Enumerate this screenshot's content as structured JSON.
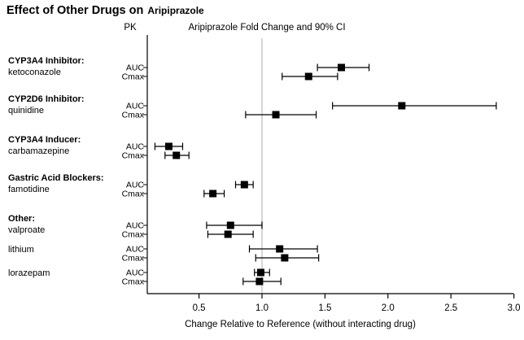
{
  "title": {
    "main": "Effect of Other Drugs on",
    "drug": "Aripiprazole"
  },
  "chart_data": {
    "type": "forest",
    "title": "Effect of Other Drugs on Aripiprazole",
    "column_headers": {
      "pk": "PK",
      "plot": "Aripiprazole Fold Change and 90% CI"
    },
    "xlabel": "Change Relative to Reference (without interacting drug)",
    "x_axis": {
      "min": 0.09,
      "max": 3.0,
      "ticks": [
        0.5,
        1.0,
        1.5,
        2.0,
        2.5,
        3.0
      ],
      "reference_line": 1.0
    },
    "ci_level": "90% CI",
    "legend_position": "none",
    "grid": false,
    "groups": [
      {
        "category": "CYP3A4 Inhibitor:",
        "drug": "ketoconazole",
        "rows": [
          {
            "metric": "AUC",
            "estimate": 1.63,
            "ci_low": 1.44,
            "ci_high": 1.85
          },
          {
            "metric": "Cmax",
            "estimate": 1.37,
            "ci_low": 1.16,
            "ci_high": 1.6
          }
        ]
      },
      {
        "category": "CYP2D6 Inhibitor:",
        "drug": "quinidine",
        "rows": [
          {
            "metric": "AUC",
            "estimate": 2.11,
            "ci_low": 1.56,
            "ci_high": 2.86
          },
          {
            "metric": "Cmax",
            "estimate": 1.11,
            "ci_low": 0.87,
            "ci_high": 1.43
          }
        ]
      },
      {
        "category": "CYP3A4 Inducer:",
        "drug": "carbamazepine",
        "rows": [
          {
            "metric": "AUC",
            "estimate": 0.26,
            "ci_low": 0.15,
            "ci_high": 0.37
          },
          {
            "metric": "Cmax",
            "estimate": 0.32,
            "ci_low": 0.23,
            "ci_high": 0.42
          }
        ]
      },
      {
        "category": "Gastric Acid Blockers:",
        "drug": "famotidine",
        "rows": [
          {
            "metric": "AUC",
            "estimate": 0.86,
            "ci_low": 0.79,
            "ci_high": 0.93
          },
          {
            "metric": "Cmax",
            "estimate": 0.61,
            "ci_low": 0.54,
            "ci_high": 0.7
          }
        ]
      },
      {
        "category": "Other:",
        "drug": "valproate",
        "rows": [
          {
            "metric": "AUC",
            "estimate": 0.75,
            "ci_low": 0.56,
            "ci_high": 1.0
          },
          {
            "metric": "Cmax",
            "estimate": 0.73,
            "ci_low": 0.57,
            "ci_high": 0.93
          }
        ]
      },
      {
        "category": null,
        "drug": "lithium",
        "rows": [
          {
            "metric": "AUC",
            "estimate": 1.14,
            "ci_low": 0.9,
            "ci_high": 1.44
          },
          {
            "metric": "Cmax",
            "estimate": 1.18,
            "ci_low": 0.95,
            "ci_high": 1.45
          }
        ]
      },
      {
        "category": null,
        "drug": "lorazepam",
        "rows": [
          {
            "metric": "AUC",
            "estimate": 0.99,
            "ci_low": 0.94,
            "ci_high": 1.06
          },
          {
            "metric": "Cmax",
            "estimate": 0.98,
            "ci_low": 0.85,
            "ci_high": 1.15
          }
        ]
      }
    ],
    "colors": {
      "marker": "#000000",
      "reference_line": "#c8c8c8",
      "axis": "#000000",
      "text": "#000000"
    }
  }
}
